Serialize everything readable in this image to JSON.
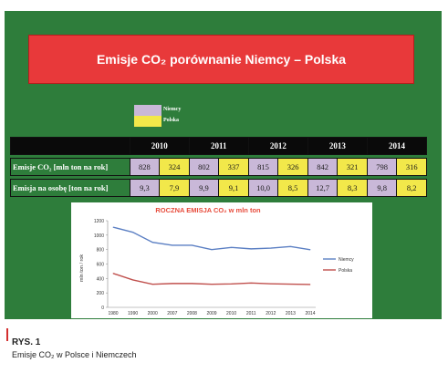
{
  "banner": {
    "title": "Emisje CO₂ porównanie Niemcy – Polska"
  },
  "legend": [
    {
      "label": "Niemcy",
      "color": "#c9b8d8"
    },
    {
      "label": "Polska",
      "color": "#f2e84a"
    }
  ],
  "table": {
    "years": [
      "2010",
      "2011",
      "2012",
      "2013",
      "2014"
    ],
    "rows": [
      {
        "label": "Emisje CO₂ [mln ton na rok]",
        "values": [
          [
            "828",
            "324"
          ],
          [
            "802",
            "337"
          ],
          [
            "815",
            "326"
          ],
          [
            "842",
            "321"
          ],
          [
            "798",
            "316"
          ]
        ]
      },
      {
        "label": "Emisja na osobę [ton na rok]",
        "values": [
          [
            "9,3",
            "7,9"
          ],
          [
            "9,9",
            "9,1"
          ],
          [
            "10,0",
            "8,5"
          ],
          [
            "12,7",
            "8,3"
          ],
          [
            "9,8",
            "8,2"
          ]
        ]
      }
    ]
  },
  "chart_data": {
    "type": "line",
    "title": "ROCZNA EMISJA CO₂ w mln ton",
    "ylabel": "mln ton / rok",
    "xlabel": "",
    "categories": [
      "1980",
      "1990",
      "2000",
      "2007",
      "2008",
      "2009",
      "2010",
      "2011",
      "2012",
      "2013",
      "2014"
    ],
    "ylim": [
      0,
      1200
    ],
    "yticks": [
      "0",
      "200",
      "400",
      "600",
      "800",
      "1000",
      "1200"
    ],
    "series": [
      {
        "name": "Niemcy",
        "color": "#5b7fc3",
        "values": [
          1110,
          1040,
          900,
          860,
          860,
          800,
          830,
          810,
          820,
          842,
          798
        ]
      },
      {
        "name": "Polska",
        "color": "#c0504d",
        "values": [
          470,
          380,
          320,
          330,
          330,
          320,
          324,
          337,
          326,
          321,
          316
        ]
      }
    ],
    "grid": false,
    "legend": "right"
  },
  "caption": {
    "title": "RYS. 1",
    "subtitle": "Emisje CO₂ w Polsce i Niemczech"
  }
}
